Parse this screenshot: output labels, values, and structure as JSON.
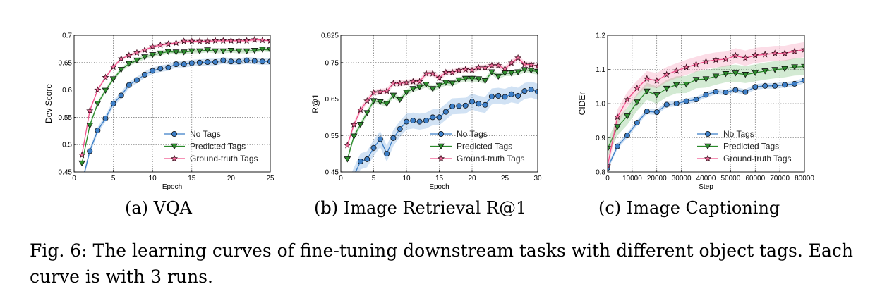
{
  "chart_data": [
    {
      "type": "line",
      "xlabel": "Epoch",
      "ylabel": "Dev Score",
      "xlim": [
        0,
        25
      ],
      "ylim": [
        0.45,
        0.7
      ],
      "xticks": [
        0,
        5,
        10,
        15,
        20,
        25
      ],
      "xtick_labels": [
        "0",
        "5",
        "10",
        "15",
        "20",
        "25"
      ],
      "yticks": [
        0.45,
        0.5,
        0.55,
        0.6,
        0.65,
        0.7
      ],
      "ytick_labels": [
        "0.45",
        "0.5",
        "0.55",
        "0.6",
        "0.65",
        "0.7"
      ],
      "grid": true,
      "legend": "bottom-right",
      "x": [
        1,
        2,
        3,
        4,
        5,
        6,
        7,
        8,
        9,
        10,
        11,
        12,
        13,
        14,
        15,
        16,
        17,
        18,
        19,
        20,
        21,
        22,
        23,
        24,
        25
      ],
      "series": [
        {
          "name": "No Tags",
          "marker": "circle",
          "color": "#3b7dc6",
          "band": 0.006,
          "values": [
            0.43,
            0.488,
            0.526,
            0.548,
            0.575,
            0.59,
            0.609,
            0.618,
            0.628,
            0.635,
            0.639,
            0.641,
            0.647,
            0.647,
            0.649,
            0.65,
            0.651,
            0.651,
            0.654,
            0.652,
            0.652,
            0.654,
            0.653,
            0.652,
            0.652
          ]
        },
        {
          "name": "Predicted Tags",
          "marker": "triangle-down",
          "color": "#2a8a2a",
          "band": 0.004,
          "values": [
            0.466,
            0.535,
            0.575,
            0.599,
            0.62,
            0.637,
            0.648,
            0.654,
            0.66,
            0.664,
            0.667,
            0.67,
            0.669,
            0.669,
            0.671,
            0.671,
            0.673,
            0.671,
            0.671,
            0.672,
            0.671,
            0.671,
            0.672,
            0.674,
            0.673
          ]
        },
        {
          "name": "Ground-truth Tags",
          "marker": "star",
          "color": "#f0508a",
          "band": 0.003,
          "values": [
            0.481,
            0.562,
            0.6,
            0.623,
            0.642,
            0.657,
            0.663,
            0.668,
            0.673,
            0.679,
            0.682,
            0.684,
            0.686,
            0.689,
            0.689,
            0.689,
            0.689,
            0.69,
            0.69,
            0.69,
            0.69,
            0.69,
            0.692,
            0.691,
            0.69
          ]
        }
      ]
    },
    {
      "type": "line",
      "xlabel": "Epoch",
      "ylabel": "R@1",
      "xlim": [
        0,
        30
      ],
      "ylim": [
        0.45,
        0.825
      ],
      "xticks": [
        0,
        5,
        10,
        15,
        20,
        25,
        30
      ],
      "xtick_labels": [
        "0",
        "5",
        "10",
        "15",
        "20",
        "25",
        "30"
      ],
      "yticks": [
        0.45,
        0.55,
        0.65,
        0.75,
        0.825
      ],
      "ytick_labels": [
        "0.45",
        "0.55",
        "0.65",
        "0.75",
        "0.825"
      ],
      "grid": true,
      "legend": "bottom-right",
      "x": [
        1,
        2,
        3,
        4,
        5,
        6,
        7,
        8,
        9,
        10,
        11,
        12,
        13,
        14,
        15,
        16,
        17,
        18,
        19,
        20,
        21,
        22,
        23,
        24,
        25,
        26,
        27,
        28,
        29,
        30
      ],
      "series": [
        {
          "name": "No Tags",
          "marker": "circle",
          "color": "#3b7dc6",
          "band": 0.022,
          "values": [
            0.4,
            0.44,
            0.479,
            0.485,
            0.516,
            0.54,
            0.5,
            0.543,
            0.568,
            0.588,
            0.591,
            0.588,
            0.591,
            0.6,
            0.6,
            0.615,
            0.63,
            0.631,
            0.632,
            0.643,
            0.637,
            0.634,
            0.657,
            0.659,
            0.656,
            0.663,
            0.659,
            0.672,
            0.676,
            0.67
          ]
        },
        {
          "name": "Predicted Tags",
          "marker": "triangle-down",
          "color": "#2a8a2a",
          "band": 0.008,
          "values": [
            0.485,
            0.548,
            0.58,
            0.612,
            0.645,
            0.642,
            0.637,
            0.66,
            0.648,
            0.668,
            0.678,
            0.683,
            0.69,
            0.678,
            0.687,
            0.695,
            0.693,
            0.702,
            0.706,
            0.706,
            0.705,
            0.7,
            0.724,
            0.712,
            0.721,
            0.721,
            0.724,
            0.73,
            0.728,
            0.725
          ]
        },
        {
          "name": "Ground-truth Tags",
          "marker": "star",
          "color": "#f0508a",
          "band": 0.008,
          "values": [
            0.523,
            0.58,
            0.62,
            0.645,
            0.668,
            0.67,
            0.672,
            0.693,
            0.693,
            0.695,
            0.698,
            0.698,
            0.72,
            0.72,
            0.708,
            0.723,
            0.723,
            0.729,
            0.731,
            0.729,
            0.736,
            0.736,
            0.742,
            0.742,
            0.733,
            0.749,
            0.763,
            0.745,
            0.744,
            0.74
          ]
        }
      ]
    },
    {
      "type": "line",
      "xlabel": "Step",
      "ylabel": "CIDEr",
      "xlim": [
        0,
        80000
      ],
      "ylim": [
        0.8,
        1.2
      ],
      "xticks": [
        0,
        10000,
        20000,
        30000,
        40000,
        50000,
        60000,
        70000,
        80000
      ],
      "xtick_labels": [
        "0",
        "10000",
        "20000",
        "30000",
        "40000",
        "50000",
        "60000",
        "70000",
        "80000"
      ],
      "yticks": [
        0.8,
        0.9,
        1.0,
        1.1,
        1.2
      ],
      "ytick_labels": [
        "0.8",
        "0.9",
        "1.0",
        "1.1",
        "1.2"
      ],
      "grid": true,
      "legend": "bottom-right",
      "x": [
        0,
        4000,
        8000,
        12000,
        16000,
        20000,
        24000,
        28000,
        32000,
        36000,
        40000,
        44000,
        48000,
        52000,
        56000,
        60000,
        64000,
        68000,
        72000,
        76000,
        80000
      ],
      "series": [
        {
          "name": "No Tags",
          "marker": "circle",
          "color": "#3b7dc6",
          "band": 0.008,
          "values": [
            0.812,
            0.875,
            0.907,
            0.944,
            0.977,
            0.975,
            0.997,
            1.0,
            1.007,
            1.012,
            1.026,
            1.035,
            1.033,
            1.04,
            1.034,
            1.049,
            1.052,
            1.052,
            1.055,
            1.058,
            1.068
          ]
        },
        {
          "name": "Predicted Tags",
          "marker": "triangle-down",
          "color": "#2a8a2a",
          "band": 0.025,
          "values": [
            0.868,
            0.932,
            0.963,
            1.004,
            1.036,
            1.025,
            1.044,
            1.055,
            1.056,
            1.07,
            1.072,
            1.08,
            1.087,
            1.089,
            1.085,
            1.09,
            1.095,
            1.099,
            1.102,
            1.107,
            1.108
          ]
        },
        {
          "name": "Ground-truth Tags",
          "marker": "star",
          "color": "#f0508a",
          "band": 0.022,
          "values": [
            0.818,
            0.961,
            1.012,
            1.045,
            1.073,
            1.067,
            1.085,
            1.096,
            1.106,
            1.115,
            1.123,
            1.128,
            1.13,
            1.14,
            1.133,
            1.141,
            1.144,
            1.147,
            1.147,
            1.153,
            1.158
          ]
        }
      ]
    }
  ],
  "captions": {
    "a": "(a) VQA",
    "b": "(b) Image Retrieval R@1",
    "c": "(c) Image Captioning"
  },
  "figure_caption": {
    "label": "Fig. 6:",
    "text": "The learning curves of fine-tuning downstream tasks with different object tags. Each curve is with 3 runs."
  }
}
